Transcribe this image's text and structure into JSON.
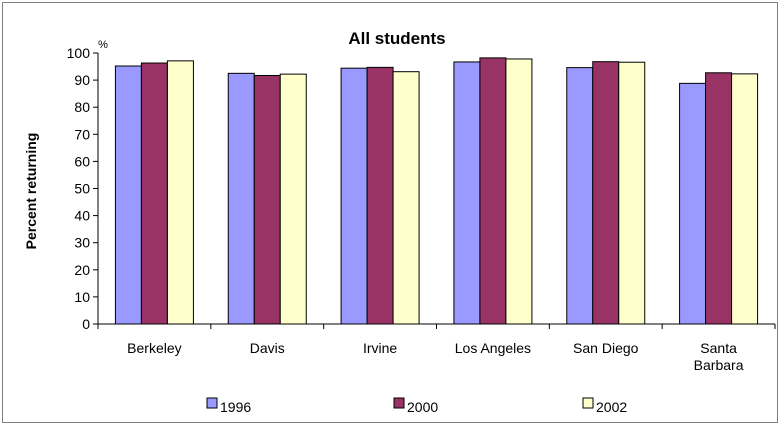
{
  "chart_data": {
    "type": "bar",
    "title": "All students",
    "ylabel": "Percent returning",
    "yunit": "%",
    "ylim": [
      0,
      100
    ],
    "yticks": [
      "0",
      "10",
      "20",
      "30",
      "40",
      "50",
      "60",
      "70",
      "80",
      "90",
      "100"
    ],
    "categories": [
      [
        "Berkeley"
      ],
      [
        "Davis"
      ],
      [
        "Irvine"
      ],
      [
        "Los Angeles"
      ],
      [
        "San Diego"
      ],
      [
        "Santa",
        "Barbara"
      ]
    ],
    "series": [
      {
        "name": "1996",
        "color": "#9999ff",
        "values": [
          95.2,
          92.5,
          94.4,
          96.7,
          94.6,
          88.8
        ]
      },
      {
        "name": "2000",
        "color": "#993366",
        "values": [
          96.3,
          91.7,
          94.7,
          98.2,
          96.8,
          92.7
        ]
      },
      {
        "name": "2002",
        "color": "#ffffcc",
        "values": [
          97.1,
          92.2,
          93.1,
          97.8,
          96.6,
          92.3
        ]
      }
    ],
    "grid": false,
    "legend": "bottom"
  }
}
